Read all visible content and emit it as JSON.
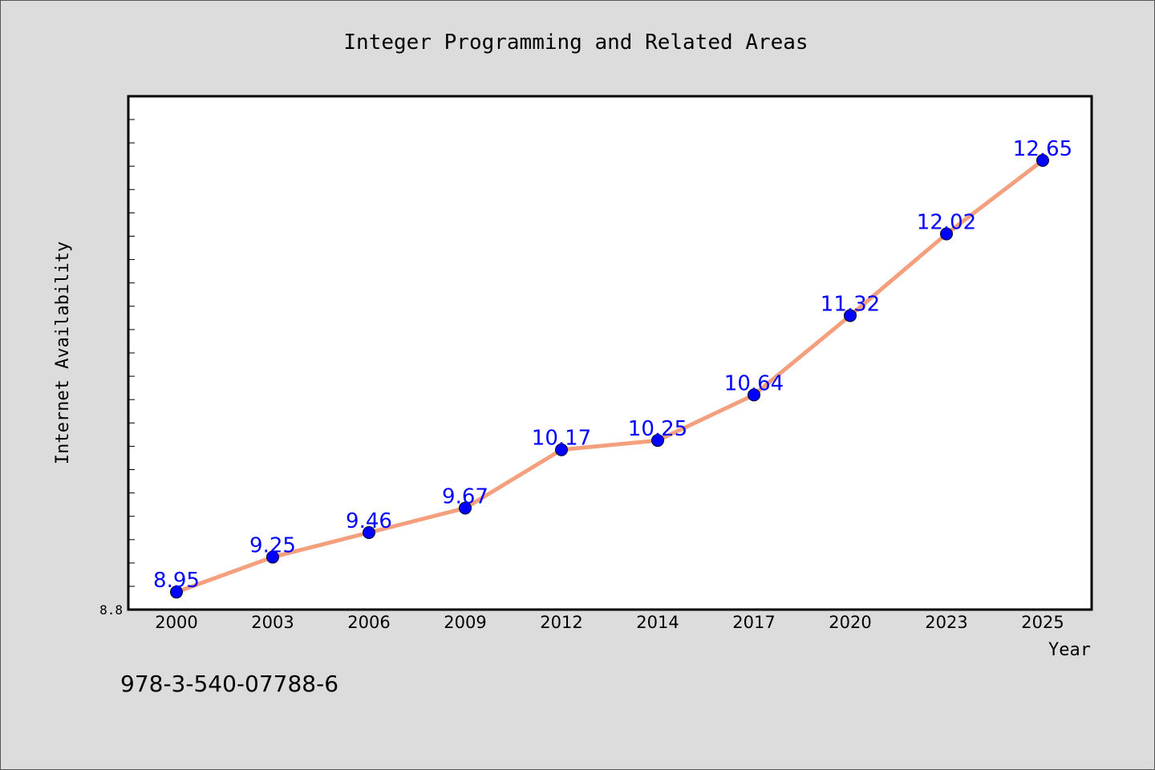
{
  "chart_data": {
    "type": "line",
    "title": "Integer Programming and Related Areas",
    "xlabel": "Year",
    "ylabel": "Internet Availability",
    "x": [
      "2000",
      "2003",
      "2006",
      "2009",
      "2012",
      "2014",
      "2017",
      "2020",
      "2023",
      "2025"
    ],
    "series": [
      {
        "values": [
          8.95,
          9.25,
          9.46,
          9.67,
          10.17,
          10.25,
          10.64,
          11.32,
          12.02,
          12.65
        ],
        "data_labels": [
          "8.95",
          "9.25",
          "9.46",
          "9.67",
          "10.17",
          "10.25",
          "10.64",
          "11.32",
          "12.02",
          "12.65"
        ],
        "line_color": "#f4a07e",
        "marker_color": "#0000ff"
      }
    ],
    "y_min_label": "8.8",
    "ylim": [
      8.8,
      13.2
    ],
    "grid": false,
    "legend": "none"
  },
  "footer": {
    "isbn": "978-3-540-07788-6"
  },
  "colors": {
    "background": "#dcdcdc",
    "plot_background": "#ffffff",
    "line": "#f4a07e",
    "marker": "#0000ff",
    "data_label": "#0000ff"
  }
}
